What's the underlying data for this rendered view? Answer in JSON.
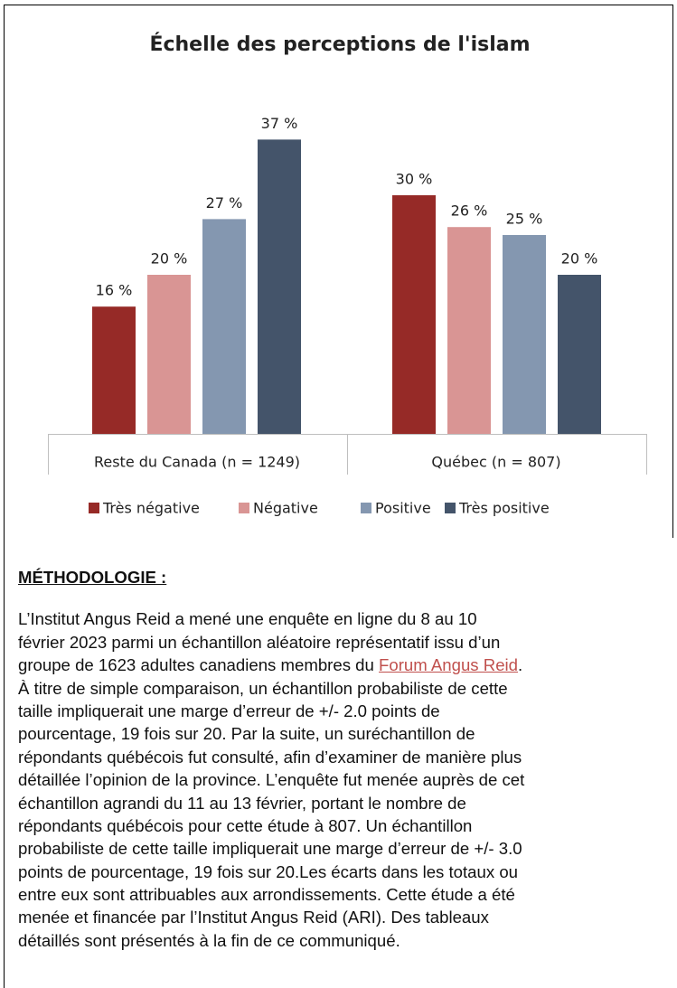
{
  "chart_data": {
    "type": "bar",
    "title": "Échelle des perceptions de l'islam",
    "categories": [
      "Reste du Canada (n = 1249)",
      "Québec (n = 807)"
    ],
    "series": [
      {
        "name": "Très négative",
        "color": "#962a27",
        "values": [
          16,
          30
        ],
        "value_labels": [
          "16 %",
          "30 %"
        ]
      },
      {
        "name": "Négative",
        "color": "#d99594",
        "values": [
          20,
          26
        ],
        "value_labels": [
          "20 %",
          "26 %"
        ]
      },
      {
        "name": "Positive",
        "color": "#8497b0",
        "values": [
          27,
          25
        ],
        "value_labels": [
          "27 %",
          "25 %"
        ]
      },
      {
        "name": "Très positive",
        "color": "#44546a",
        "values": [
          37,
          20
        ],
        "value_labels": [
          "37 %",
          "20 %"
        ]
      }
    ],
    "legend": "bottom"
  },
  "methodology": {
    "heading": "MÉTHODOLOGIE :",
    "lines_before_link": [
      "L’Institut Angus Reid a mené une enquête en ligne du 8 au 10",
      "février 2023 parmi un échantillon aléatoire représentatif issu d’un"
    ],
    "link_line_start": "groupe de 1623 adultes canadiens membres du ",
    "link": "Forum Angus Reid",
    "link_line_end": ".",
    "lines_after_link": [
      "À titre de simple comparaison, un échantillon probabiliste de cette",
      "taille impliquerait une marge d’erreur de +/- 2.0 points de",
      "pourcentage, 19 fois sur 20.  Par la suite, un suréchantillon de",
      "répondants québécois fut consulté, afin d’examiner de manière plus",
      "détaillée l’opinion de la province. L’enquête fut menée auprès de cet",
      "échantillon agrandi du 11 au 13 février, portant le nombre de",
      "répondants québécois pour cette étude à 807. Un échantillon",
      "probabiliste de cette taille impliquerait une marge d’erreur de +/- 3.0",
      "points de pourcentage, 19 fois sur 20.Les écarts dans les totaux ou",
      "entre eux sont attribuables aux arrondissements. Cette étude a été",
      "menée et financée par l’Institut Angus Reid (ARI). Des tableaux",
      "détaillés sont présentés à la fin de ce communiqué."
    ]
  }
}
